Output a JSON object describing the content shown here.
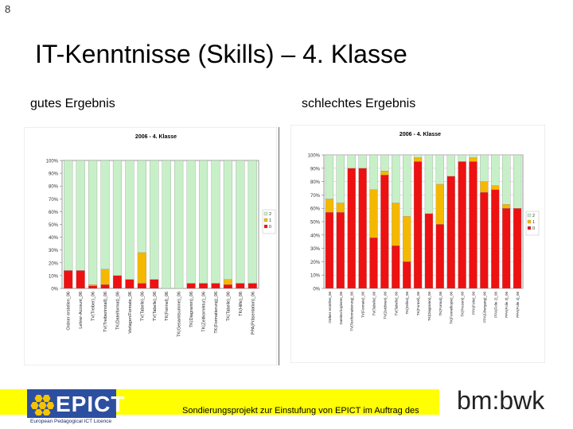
{
  "slide_number": "8",
  "title": "IT-Kenntnisse (Skills) – 4. Klasse",
  "left_heading": "gutes Ergebnis",
  "right_heading": "schlechtes Ergebnis",
  "footer_text": "Sondierungsprojekt zur Einstufung von EPICT im Auftrag des",
  "logo_left": {
    "word": "EPICT",
    "subtitle": "European Pedagogical ICT Licence"
  },
  "logo_right": "bm:bwk",
  "colors": {
    "series_2": "#c8f0c8",
    "series_1": "#f5b800",
    "series_0": "#ee1111",
    "plot_bg": "#ffffff",
    "footer_band": "#ffff00",
    "epict_blue": "#2d4fa0"
  },
  "chart_data": [
    {
      "type": "bar",
      "stacked": true,
      "title": "2006 - 4. Klasse",
      "ylim": [
        0,
        100
      ],
      "yticks": [
        "0%",
        "10%",
        "20%",
        "30%",
        "40%",
        "50%",
        "60%",
        "70%",
        "80%",
        "90%",
        "100%"
      ],
      "grid": false,
      "legend": "right",
      "categories": [
        "Ordner erstellen_06",
        "Lehrer-Account_06",
        "TV(Treiber)_06",
        "TV(Treiberinstall)_06",
        "TK(Dateiformat)_06",
        "Vorlagen/Formate_06",
        "TV(Tabelle)_06",
        "TV(Tabelle)_06",
        "TK(Formel)_06",
        "TK(Gesamtsumme)_06",
        "TK(Diagramm)_06",
        "TK(Zeitkorrektur)_06",
        "TK(Formatierung)_06",
        "TK(Tabelle)_06",
        "TK(Hilfe)_06",
        "PPA(Präsentation)_06"
      ],
      "series": [
        {
          "name": "2",
          "values": [
            86,
            86,
            97,
            85,
            90,
            93,
            72,
            93,
            100,
            100,
            96,
            96,
            96,
            93,
            96,
            96
          ]
        },
        {
          "name": "1",
          "values": [
            0,
            0,
            1,
            12,
            0,
            0,
            24,
            0,
            0,
            0,
            0,
            0,
            0,
            4,
            0,
            0
          ]
        },
        {
          "name": "0",
          "values": [
            14,
            14,
            2,
            3,
            10,
            7,
            4,
            7,
            0,
            0,
            4,
            4,
            4,
            3,
            4,
            4
          ]
        }
      ]
    },
    {
      "type": "bar",
      "stacked": true,
      "title": "2006 - 4. Klasse",
      "ylim": [
        0,
        100
      ],
      "yticks": [
        "0%",
        "10%",
        "20%",
        "30%",
        "40%",
        "50%",
        "60%",
        "70%",
        "80%",
        "90%",
        "100%"
      ],
      "grid": true,
      "legend": "right",
      "categories": [
        "Ordner erstellen_06",
        "Dateien kopieren_06",
        "TV(Textformatierung)_06",
        "TV(Formate)_06",
        "TV(Tabelle)_06",
        "TV(Zeichnen)_06",
        "TV(Tabelle)_06",
        "TK(Zellen)_06",
        "TK(Formel)_06",
        "TK(Diagramm)_06",
        "TK(Format)_06",
        "TK(Formelkopie)_06",
        "TK(Prozent)_06",
        "PPA(Folie)_06",
        "PPA(Übergang)_06",
        "PPA(Folie 2)_06",
        "PPA(Folie 3)_06",
        "PPA(Folie 4)_06"
      ],
      "series": [
        {
          "name": "2",
          "values": [
            33,
            36,
            10,
            10,
            26,
            12,
            36,
            46,
            2,
            44,
            22,
            16,
            5,
            2,
            20,
            23,
            37,
            40
          ]
        },
        {
          "name": "1",
          "values": [
            10,
            7,
            0,
            0,
            36,
            3,
            32,
            34,
            3,
            0,
            30,
            0,
            0,
            3,
            8,
            3,
            3,
            0
          ]
        },
        {
          "name": "0",
          "values": [
            57,
            57,
            90,
            90,
            38,
            85,
            32,
            20,
            95,
            56,
            48,
            84,
            95,
            95,
            72,
            74,
            60,
            60
          ]
        }
      ]
    }
  ]
}
